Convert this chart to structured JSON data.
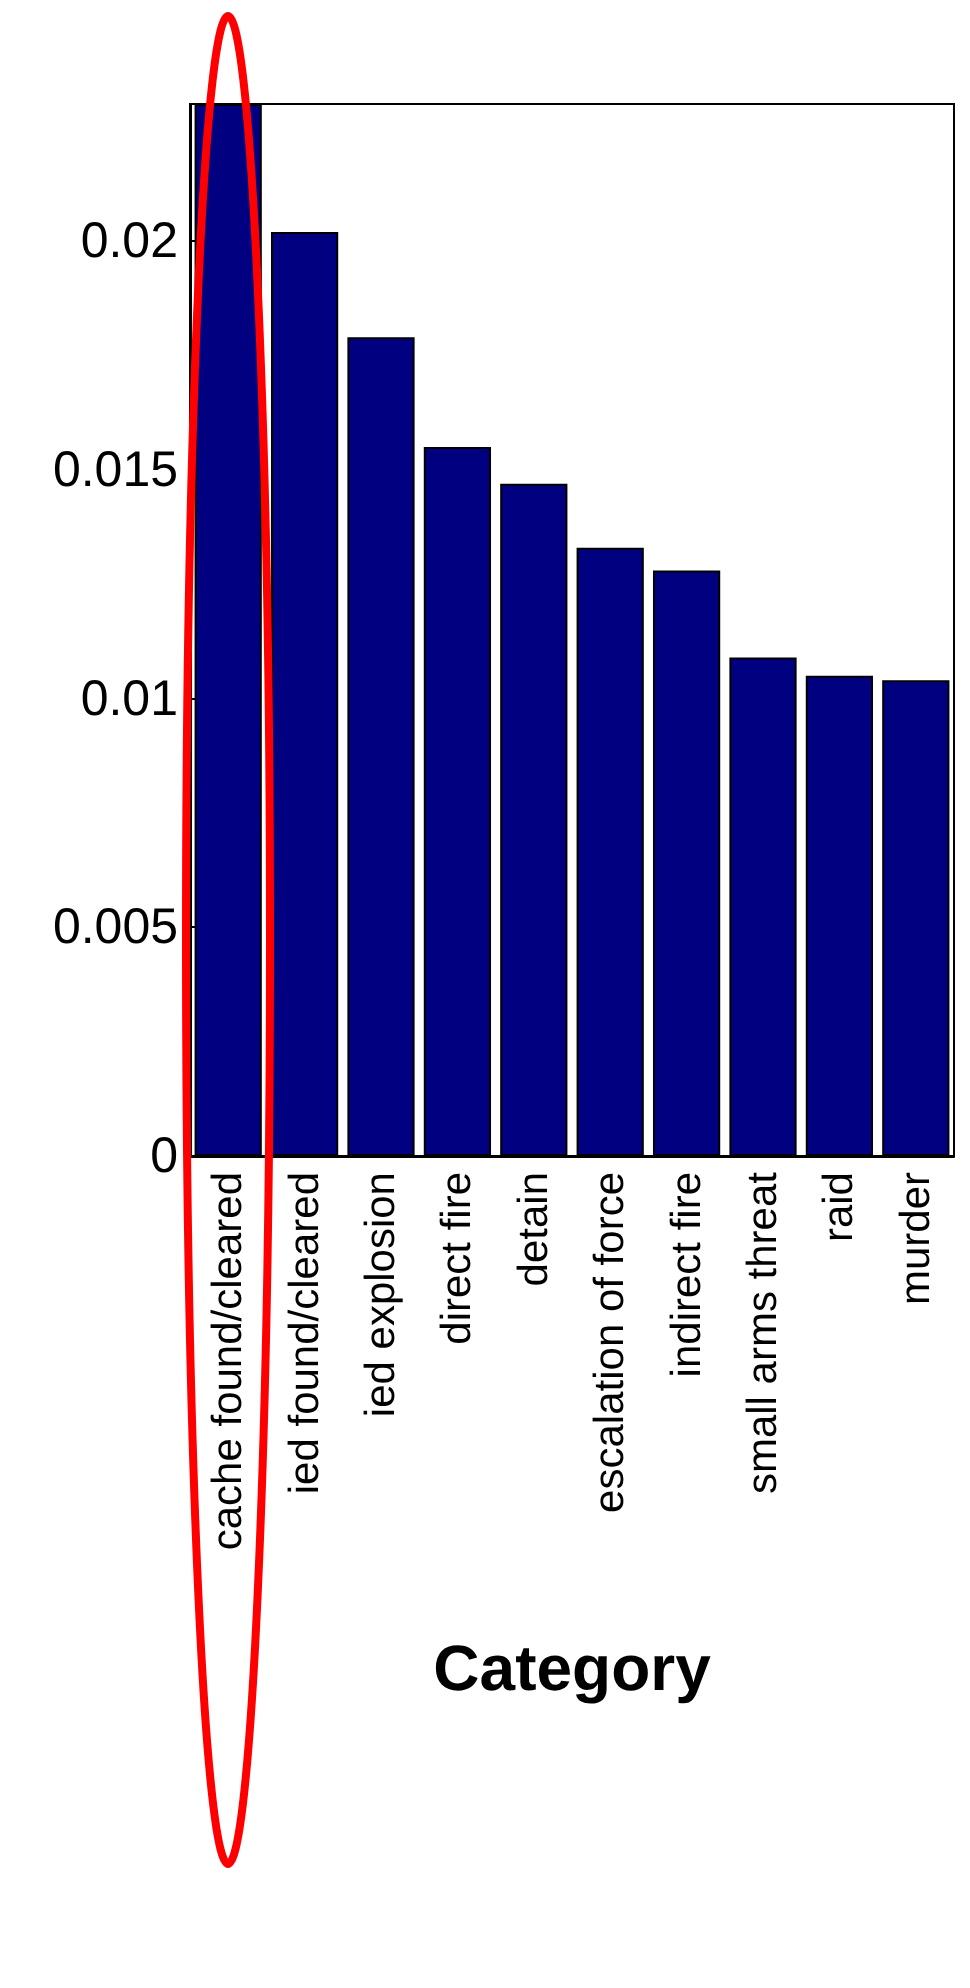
{
  "chart_data": {
    "type": "bar",
    "xlabel": "Category",
    "categories": [
      "cache found/cleared",
      "ied found/cleared",
      "ied explosion",
      "direct fire",
      "detain",
      "escalation of force",
      "indirect fire",
      "small arms threat",
      "raid",
      "murder"
    ],
    "values": [
      0.023,
      0.0202,
      0.0179,
      0.0155,
      0.0147,
      0.0133,
      0.0128,
      0.0109,
      0.0105,
      0.0104
    ],
    "color": "#000080",
    "ylim": [
      0,
      0.023
    ],
    "yticks": [
      0,
      0.005,
      0.01,
      0.015,
      0.02
    ],
    "grid": false
  }
}
